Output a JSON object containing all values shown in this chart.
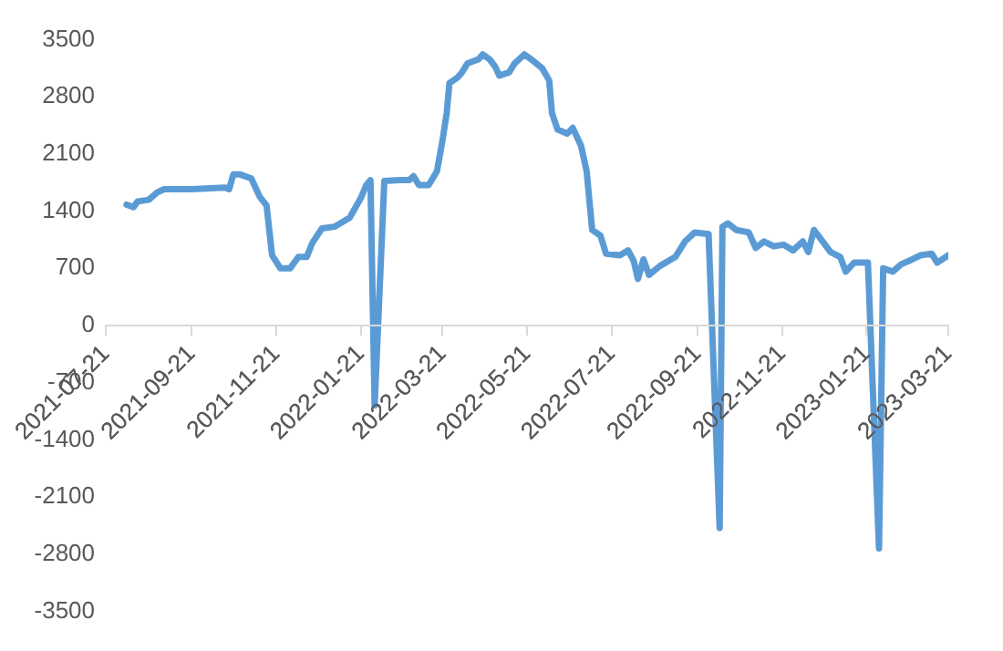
{
  "chart_data": {
    "type": "line",
    "x": [
      "2021-08-05",
      "2021-08-10",
      "2021-08-13",
      "2021-08-21",
      "2021-08-27",
      "2021-09-01",
      "2021-09-21",
      "2021-10-15",
      "2021-10-18",
      "2021-10-21",
      "2021-10-26",
      "2021-11-03",
      "2021-11-09",
      "2021-11-14",
      "2021-11-18",
      "2021-11-24",
      "2021-12-01",
      "2021-12-07",
      "2021-12-13",
      "2021-12-17",
      "2021-12-24",
      "2022-01-02",
      "2022-01-13",
      "2022-01-21",
      "2022-01-25",
      "2022-01-28",
      "2022-01-31",
      "2022-02-07",
      "2022-02-18",
      "2022-02-25",
      "2022-02-28",
      "2022-03-04",
      "2022-03-11",
      "2022-03-17",
      "2022-03-21",
      "2022-03-24",
      "2022-03-26",
      "2022-04-01",
      "2022-04-04",
      "2022-04-08",
      "2022-04-16",
      "2022-04-19",
      "2022-04-24",
      "2022-04-28",
      "2022-05-01",
      "2022-05-08",
      "2022-05-12",
      "2022-05-19",
      "2022-05-24",
      "2022-06-01",
      "2022-06-06",
      "2022-06-08",
      "2022-06-12",
      "2022-06-19",
      "2022-06-23",
      "2022-06-29",
      "2022-07-03",
      "2022-07-07",
      "2022-07-13",
      "2022-07-17",
      "2022-07-27",
      "2022-08-02",
      "2022-08-06",
      "2022-08-09",
      "2022-08-13",
      "2022-08-17",
      "2022-08-25",
      "2022-09-05",
      "2022-09-12",
      "2022-09-19",
      "2022-09-29",
      "2022-10-07",
      "2022-10-09",
      "2022-10-13",
      "2022-10-19",
      "2022-10-28",
      "2022-11-02",
      "2022-11-08",
      "2022-11-15",
      "2022-11-22",
      "2022-11-29",
      "2022-12-06",
      "2022-12-10",
      "2022-12-14",
      "2022-12-19",
      "2022-12-26",
      "2023-01-02",
      "2023-01-06",
      "2023-01-12",
      "2023-01-22",
      "2023-01-30",
      "2023-02-02",
      "2023-02-09",
      "2023-02-15",
      "2023-02-23",
      "2023-03-01",
      "2023-03-09",
      "2023-03-13",
      "2023-03-21"
    ],
    "series": [
      {
        "color": "#5b9bd5",
        "values": [
          1480,
          1450,
          1520,
          1540,
          1630,
          1670,
          1670,
          1690,
          1670,
          1850,
          1850,
          1800,
          1580,
          1470,
          860,
          700,
          700,
          840,
          840,
          1010,
          1190,
          1210,
          1320,
          1560,
          1720,
          1780,
          -980,
          1770,
          1780,
          1780,
          1830,
          1720,
          1720,
          1890,
          2270,
          2600,
          2970,
          3040,
          3100,
          3210,
          3260,
          3320,
          3260,
          3170,
          3060,
          3100,
          3210,
          3320,
          3260,
          3150,
          3000,
          2600,
          2400,
          2350,
          2420,
          2200,
          1890,
          1170,
          1100,
          880,
          860,
          920,
          790,
          570,
          810,
          620,
          730,
          840,
          1030,
          1140,
          1120,
          -2480,
          1210,
          1250,
          1170,
          1140,
          950,
          1030,
          970,
          990,
          920,
          1030,
          900,
          1170,
          1060,
          900,
          840,
          660,
          770,
          770,
          -2730,
          700,
          660,
          750,
          810,
          860,
          880,
          770,
          860
        ]
      }
    ],
    "xlim": [
      "2021-07-21",
      "2023-03-21"
    ],
    "xticks": [
      "2021-07-21",
      "2021-09-21",
      "2021-11-21",
      "2022-01-21",
      "2022-03-21",
      "2022-05-21",
      "2022-07-21",
      "2022-09-21",
      "2022-11-21",
      "2023-01-21",
      "2023-03-21"
    ],
    "ylim": [
      -3500,
      3500
    ],
    "yticks": [
      -3500,
      -2800,
      -2100,
      -1400,
      -700,
      0,
      700,
      1400,
      2100,
      2800,
      3500
    ],
    "grid": false,
    "legend": false,
    "marker": "none",
    "line_style": "solid"
  }
}
